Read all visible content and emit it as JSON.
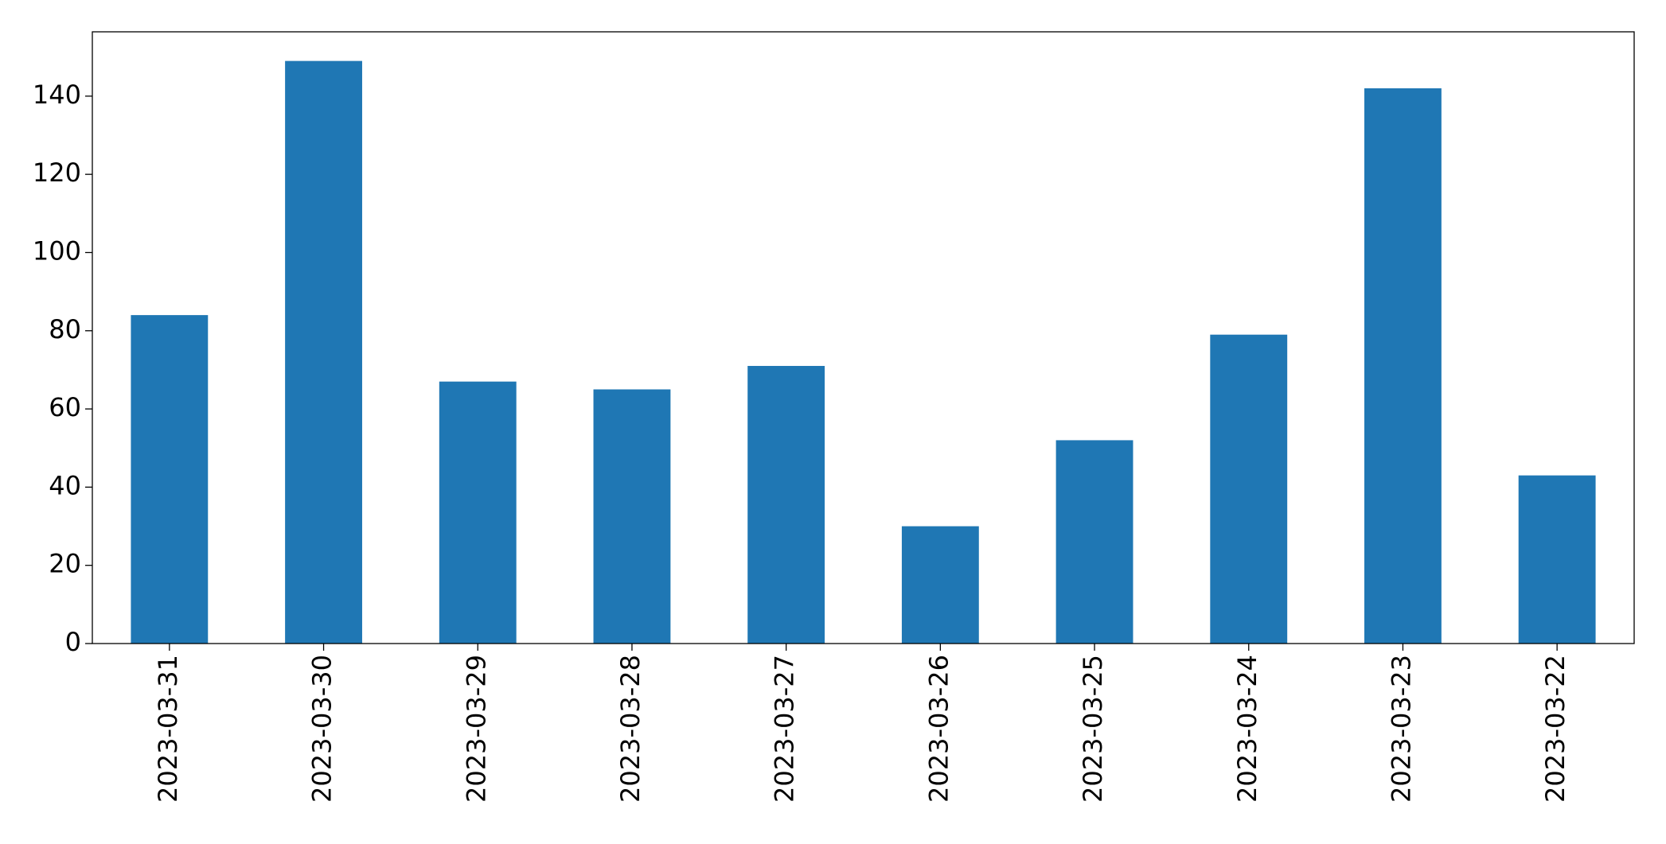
{
  "chart_data": {
    "type": "bar",
    "categories": [
      "2023-03-31",
      "2023-03-30",
      "2023-03-29",
      "2023-03-28",
      "2023-03-27",
      "2023-03-26",
      "2023-03-25",
      "2023-03-24",
      "2023-03-23",
      "2023-03-22"
    ],
    "values": [
      84,
      149,
      67,
      65,
      71,
      30,
      52,
      79,
      142,
      43
    ],
    "color": "#1f77b4",
    "ylim": [
      0,
      156.45
    ],
    "yticks": [
      0,
      20,
      40,
      60,
      80,
      100,
      120,
      140
    ],
    "grid": false
  }
}
